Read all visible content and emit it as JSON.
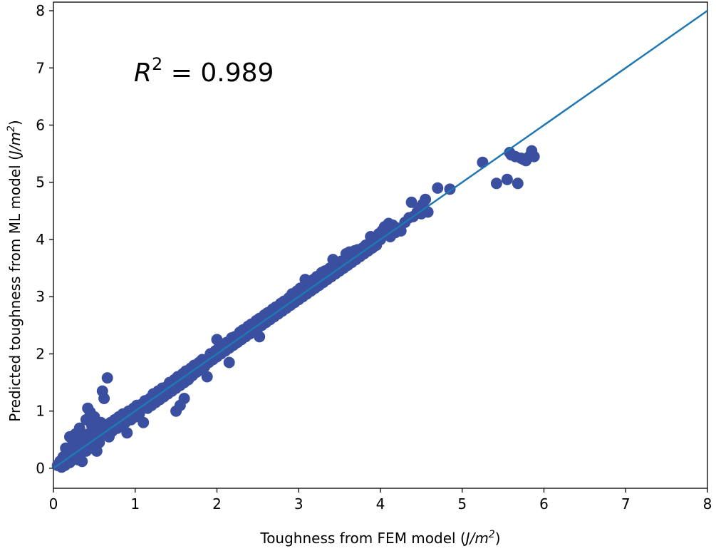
{
  "chart_data": {
    "type": "scatter",
    "title": "",
    "xlabel": "Toughness from FEM model (J/m²)",
    "xlabel_parts": {
      "prefix": "Toughness from FEM model (",
      "unit_italic": "J/m",
      "sup": "2",
      "suffix": ")"
    },
    "ylabel": "Predicted toughness from ML model (J/m²)",
    "ylabel_parts": {
      "prefix": "Predicted toughness from ML model (",
      "unit_italic": "J/m",
      "sup": "2",
      "suffix": ")"
    },
    "xlim": [
      0,
      8
    ],
    "ylim": [
      -0.35,
      8.15
    ],
    "xticks": [
      "0",
      "1",
      "2",
      "3",
      "4",
      "5",
      "6",
      "7",
      "8"
    ],
    "yticks": [
      "0",
      "1",
      "2",
      "3",
      "4",
      "5",
      "6",
      "7",
      "8"
    ],
    "grid": false,
    "annotation": {
      "symbol": "R",
      "sup": "2",
      "text": " = 0.989"
    },
    "colors": {
      "points": "#3a4fa0",
      "fit_line": "#1f77b4"
    },
    "fit_line": {
      "x": [
        0,
        8
      ],
      "y": [
        0,
        8
      ]
    },
    "points": [
      [
        0.05,
        0.05
      ],
      [
        0.08,
        0.12
      ],
      [
        0.1,
        0.02
      ],
      [
        0.12,
        0.2
      ],
      [
        0.14,
        0.05
      ],
      [
        0.15,
        0.35
      ],
      [
        0.17,
        0.15
      ],
      [
        0.18,
        0.28
      ],
      [
        0.2,
        0.55
      ],
      [
        0.2,
        0.1
      ],
      [
        0.22,
        0.3
      ],
      [
        0.24,
        0.45
      ],
      [
        0.25,
        0.2
      ],
      [
        0.27,
        0.6
      ],
      [
        0.28,
        0.35
      ],
      [
        0.3,
        0.15
      ],
      [
        0.3,
        0.5
      ],
      [
        0.32,
        0.7
      ],
      [
        0.33,
        0.25
      ],
      [
        0.35,
        0.12
      ],
      [
        0.36,
        0.55
      ],
      [
        0.38,
        0.4
      ],
      [
        0.4,
        0.85
      ],
      [
        0.4,
        0.3
      ],
      [
        0.42,
        1.05
      ],
      [
        0.43,
        0.6
      ],
      [
        0.45,
        0.98
      ],
      [
        0.45,
        0.45
      ],
      [
        0.47,
        0.75
      ],
      [
        0.48,
        0.35
      ],
      [
        0.5,
        0.9
      ],
      [
        0.5,
        0.55
      ],
      [
        0.52,
        0.65
      ],
      [
        0.53,
        0.3
      ],
      [
        0.55,
        0.7
      ],
      [
        0.56,
        0.45
      ],
      [
        0.58,
        0.8
      ],
      [
        0.6,
        1.35
      ],
      [
        0.6,
        0.6
      ],
      [
        0.62,
        1.22
      ],
      [
        0.65,
        0.75
      ],
      [
        0.66,
        1.58
      ],
      [
        0.68,
        0.55
      ],
      [
        0.7,
        0.8
      ],
      [
        0.72,
        0.65
      ],
      [
        0.75,
        0.85
      ],
      [
        0.78,
        0.7
      ],
      [
        0.8,
        0.9
      ],
      [
        0.82,
        0.75
      ],
      [
        0.85,
        0.95
      ],
      [
        0.88,
        0.8
      ],
      [
        0.9,
        0.62
      ],
      [
        0.92,
        1.0
      ],
      [
        0.95,
        0.85
      ],
      [
        0.98,
        1.05
      ],
      [
        1.0,
        0.9
      ],
      [
        1.02,
        1.1
      ],
      [
        1.05,
        0.95
      ],
      [
        1.08,
        1.12
      ],
      [
        1.1,
        0.8
      ],
      [
        1.12,
        1.18
      ],
      [
        1.15,
        1.05
      ],
      [
        1.18,
        1.22
      ],
      [
        1.2,
        1.1
      ],
      [
        1.22,
        1.3
      ],
      [
        1.25,
        1.15
      ],
      [
        1.28,
        1.35
      ],
      [
        1.3,
        1.2
      ],
      [
        1.33,
        1.4
      ],
      [
        1.35,
        1.25
      ],
      [
        1.38,
        1.42
      ],
      [
        1.4,
        1.3
      ],
      [
        1.42,
        1.5
      ],
      [
        1.45,
        1.35
      ],
      [
        1.48,
        1.55
      ],
      [
        1.5,
        1.0
      ],
      [
        1.5,
        1.4
      ],
      [
        1.52,
        1.6
      ],
      [
        1.55,
        1.45
      ],
      [
        1.55,
        1.1
      ],
      [
        1.58,
        1.65
      ],
      [
        1.6,
        1.5
      ],
      [
        1.6,
        1.22
      ],
      [
        1.62,
        1.7
      ],
      [
        1.65,
        1.55
      ],
      [
        1.68,
        1.75
      ],
      [
        1.7,
        1.62
      ],
      [
        1.72,
        1.8
      ],
      [
        1.75,
        1.68
      ],
      [
        1.78,
        1.85
      ],
      [
        1.8,
        1.72
      ],
      [
        1.82,
        1.9
      ],
      [
        1.85,
        1.78
      ],
      [
        1.88,
        1.6
      ],
      [
        1.9,
        1.85
      ],
      [
        1.92,
        2.0
      ],
      [
        1.95,
        1.9
      ],
      [
        1.98,
        2.05
      ],
      [
        2.0,
        1.95
      ],
      [
        2.0,
        2.25
      ],
      [
        2.02,
        2.1
      ],
      [
        2.05,
        2.0
      ],
      [
        2.08,
        2.15
      ],
      [
        2.1,
        2.05
      ],
      [
        2.12,
        2.2
      ],
      [
        2.15,
        1.85
      ],
      [
        2.15,
        2.1
      ],
      [
        2.18,
        2.28
      ],
      [
        2.2,
        2.15
      ],
      [
        2.22,
        2.3
      ],
      [
        2.25,
        2.2
      ],
      [
        2.28,
        2.38
      ],
      [
        2.3,
        2.25
      ],
      [
        2.32,
        2.42
      ],
      [
        2.35,
        2.3
      ],
      [
        2.38,
        2.48
      ],
      [
        2.4,
        2.35
      ],
      [
        2.42,
        2.52
      ],
      [
        2.45,
        2.4
      ],
      [
        2.48,
        2.58
      ],
      [
        2.5,
        2.45
      ],
      [
        2.52,
        2.3
      ],
      [
        2.52,
        2.62
      ],
      [
        2.55,
        2.5
      ],
      [
        2.58,
        2.68
      ],
      [
        2.6,
        2.55
      ],
      [
        2.62,
        2.72
      ],
      [
        2.65,
        2.6
      ],
      [
        2.68,
        2.78
      ],
      [
        2.7,
        2.65
      ],
      [
        2.72,
        2.82
      ],
      [
        2.75,
        2.7
      ],
      [
        2.78,
        2.88
      ],
      [
        2.8,
        2.75
      ],
      [
        2.82,
        2.92
      ],
      [
        2.85,
        2.8
      ],
      [
        2.88,
        2.98
      ],
      [
        2.9,
        2.85
      ],
      [
        2.92,
        3.05
      ],
      [
        2.95,
        2.9
      ],
      [
        2.98,
        3.1
      ],
      [
        3.0,
        2.95
      ],
      [
        3.02,
        3.15
      ],
      [
        3.05,
        3.0
      ],
      [
        3.08,
        3.2
      ],
      [
        3.08,
        3.3
      ],
      [
        3.1,
        3.05
      ],
      [
        3.12,
        3.25
      ],
      [
        3.15,
        3.1
      ],
      [
        3.18,
        3.3
      ],
      [
        3.2,
        3.15
      ],
      [
        3.22,
        3.35
      ],
      [
        3.25,
        3.2
      ],
      [
        3.28,
        3.42
      ],
      [
        3.3,
        3.25
      ],
      [
        3.32,
        3.45
      ],
      [
        3.35,
        3.3
      ],
      [
        3.38,
        3.5
      ],
      [
        3.4,
        3.35
      ],
      [
        3.42,
        3.65
      ],
      [
        3.45,
        3.4
      ],
      [
        3.48,
        3.6
      ],
      [
        3.5,
        3.45
      ],
      [
        3.52,
        3.62
      ],
      [
        3.55,
        3.5
      ],
      [
        3.58,
        3.75
      ],
      [
        3.6,
        3.55
      ],
      [
        3.62,
        3.78
      ],
      [
        3.65,
        3.6
      ],
      [
        3.68,
        3.8
      ],
      [
        3.7,
        3.65
      ],
      [
        3.72,
        3.82
      ],
      [
        3.75,
        3.7
      ],
      [
        3.78,
        3.85
      ],
      [
        3.8,
        3.75
      ],
      [
        3.82,
        3.9
      ],
      [
        3.85,
        3.8
      ],
      [
        3.88,
        4.05
      ],
      [
        3.9,
        3.85
      ],
      [
        3.92,
        3.95
      ],
      [
        3.95,
        3.9
      ],
      [
        3.98,
        4.1
      ],
      [
        4.0,
        4.0
      ],
      [
        4.02,
        4.15
      ],
      [
        4.05,
        4.22
      ],
      [
        4.08,
        4.1
      ],
      [
        4.1,
        4.28
      ],
      [
        4.12,
        4.05
      ],
      [
        4.15,
        4.25
      ],
      [
        4.18,
        4.12
      ],
      [
        4.2,
        4.2
      ],
      [
        4.25,
        4.15
      ],
      [
        4.3,
        4.3
      ],
      [
        4.35,
        4.38
      ],
      [
        4.38,
        4.65
      ],
      [
        4.4,
        4.4
      ],
      [
        4.45,
        4.48
      ],
      [
        4.48,
        4.55
      ],
      [
        4.5,
        4.45
      ],
      [
        4.52,
        4.62
      ],
      [
        4.55,
        4.7
      ],
      [
        4.58,
        4.48
      ],
      [
        4.7,
        4.9
      ],
      [
        4.85,
        4.88
      ],
      [
        5.25,
        5.35
      ],
      [
        5.42,
        4.98
      ],
      [
        5.55,
        5.05
      ],
      [
        5.58,
        5.52
      ],
      [
        5.65,
        5.45
      ],
      [
        5.68,
        4.98
      ],
      [
        5.72,
        5.42
      ],
      [
        5.78,
        5.38
      ],
      [
        5.82,
        5.45
      ],
      [
        5.85,
        5.55
      ],
      [
        5.88,
        5.45
      ],
      [
        5.6,
        5.48
      ],
      [
        5.75,
        5.4
      ]
    ]
  }
}
